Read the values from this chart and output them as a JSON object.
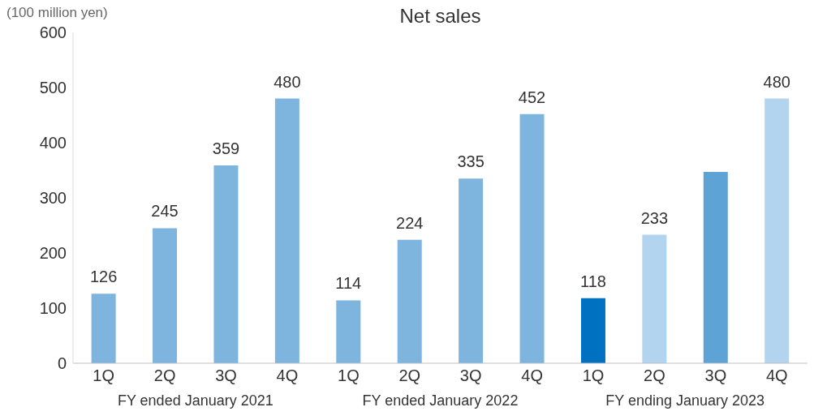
{
  "chart_data": {
    "type": "bar",
    "title": "Net sales",
    "ylabel": "(100 million yen)",
    "categories": [
      "1Q",
      "2Q",
      "3Q",
      "4Q",
      "1Q",
      "2Q",
      "3Q",
      "4Q",
      "1Q",
      "2Q",
      "3Q",
      "4Q"
    ],
    "values": [
      126,
      245,
      359,
      480,
      114,
      224,
      335,
      452,
      118,
      233,
      347,
      480
    ],
    "colors": [
      "#7eb5de",
      "#7eb5de",
      "#7eb5de",
      "#7eb5de",
      "#7eb5de",
      "#7eb5de",
      "#7eb5de",
      "#7eb5de",
      "#0070c0",
      "#b3d4ee",
      "#5ea3d6",
      "#b3d4ee"
    ],
    "value_labels": [
      "126",
      "245",
      "359",
      "480",
      "114",
      "224",
      "335",
      "452",
      "118",
      "233",
      null,
      "480"
    ],
    "annotations": [
      "FY ended January 2021",
      "FY ended January 2022",
      "FY ending January 2023"
    ],
    "ylim": [
      0,
      600
    ],
    "yticks": [
      0,
      100,
      200,
      300,
      400,
      500,
      600
    ],
    "grid": false
  }
}
